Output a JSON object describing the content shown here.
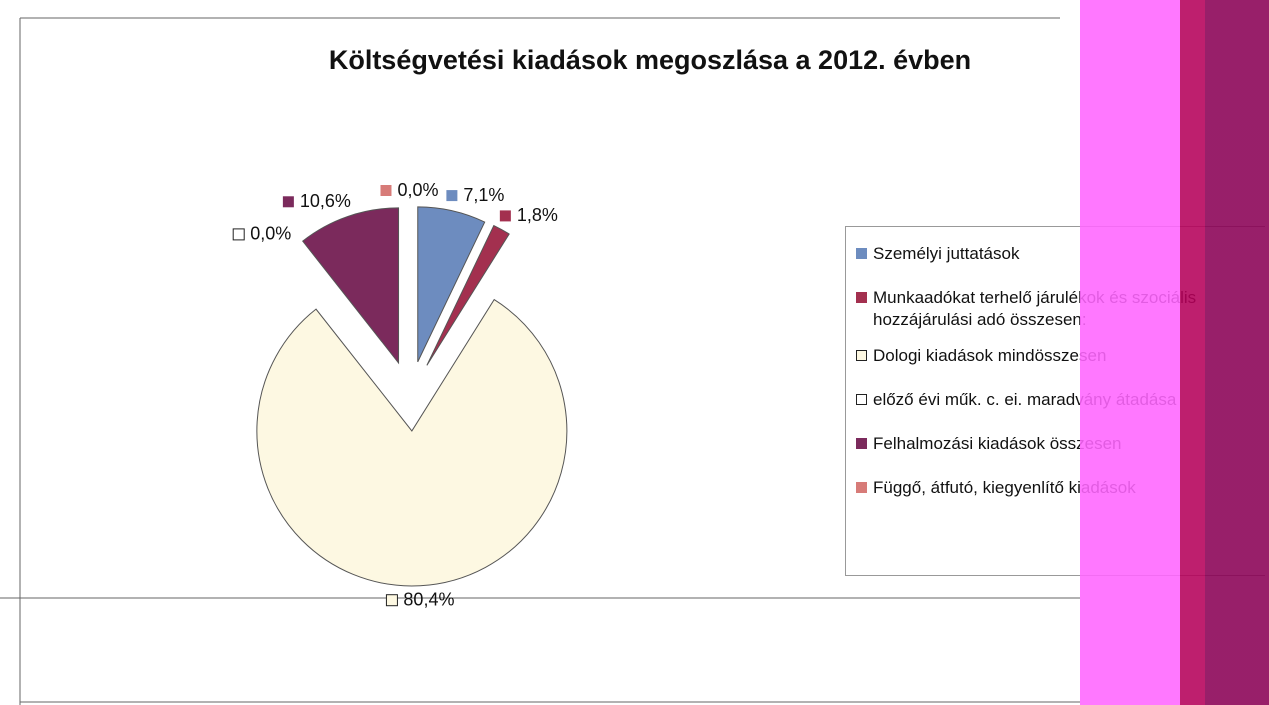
{
  "chart_data": {
    "type": "pie",
    "title": "Költségvetési kiadások megoszlása a 2012. évben",
    "categories": [
      "Személyi juttatások",
      "Munkaadókat terhelő járulékok és szociális hozzájárulási adó összesen:",
      "Dologi kiadások mindösszesen",
      "előző évi műk. c. ei. maradvány átadása",
      "Felhalmozási kiadások összesen",
      "Függő, átfutó, kiegyenlítő kiadások"
    ],
    "values": [
      7.1,
      1.8,
      80.4,
      0.0,
      10.6,
      0.0
    ],
    "value_labels": [
      "7,1%",
      "1,8%",
      "80,4%",
      "0,0%",
      "10,6%",
      "0,0%"
    ],
    "colors": [
      "#6d8cbf",
      "#a3304f",
      "#fdf8e2",
      "#ffffff",
      "#7b2a5c",
      "#d77b78"
    ],
    "legend": "right"
  }
}
